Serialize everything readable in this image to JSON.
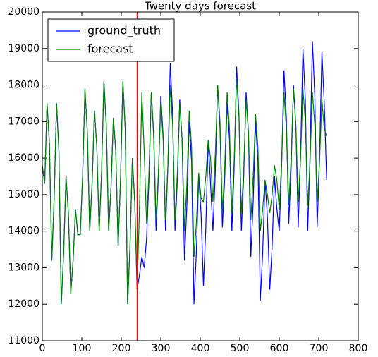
{
  "chart_data": {
    "type": "line",
    "title": "Twenty days forecast",
    "x": [
      0,
      6,
      12,
      18,
      24,
      30,
      36,
      42,
      48,
      54,
      60,
      66,
      72,
      78,
      84,
      90,
      96,
      102,
      108,
      114,
      120,
      126,
      132,
      138,
      144,
      150,
      156,
      162,
      168,
      174,
      180,
      186,
      192,
      198,
      204,
      210,
      216,
      222,
      228,
      234,
      240,
      246,
      252,
      258,
      264,
      270,
      276,
      282,
      288,
      294,
      300,
      306,
      312,
      318,
      324,
      330,
      336,
      342,
      348,
      354,
      360,
      366,
      372,
      378,
      384,
      390,
      396,
      402,
      408,
      414,
      420,
      426,
      432,
      438,
      444,
      450,
      456,
      462,
      468,
      474,
      480,
      486,
      492,
      498,
      504,
      510,
      516,
      522,
      528,
      534,
      540,
      546,
      552,
      558,
      564,
      570,
      576,
      582,
      588,
      594,
      600,
      606,
      612,
      618,
      624,
      630,
      636,
      642,
      648,
      654,
      660,
      666,
      672,
      678,
      684,
      690,
      696,
      702,
      708,
      714,
      720
    ],
    "series": [
      {
        "name": "ground_truth",
        "color": "#0000ff",
        "values": [
          15800,
          15300,
          17500,
          16400,
          13200,
          14900,
          17500,
          16200,
          12000,
          13400,
          15500,
          14500,
          12300,
          13200,
          14600,
          13900,
          13900,
          15500,
          17900,
          16700,
          14000,
          15300,
          17300,
          16300,
          14000,
          15600,
          18100,
          16900,
          14000,
          15200,
          17100,
          16200,
          13600,
          15400,
          18100,
          16800,
          12000,
          13600,
          16000,
          14800,
          12400,
          12800,
          13300,
          13000,
          13800,
          15400,
          17800,
          16600,
          14000,
          15500,
          17700,
          16600,
          14000,
          15800,
          18600,
          17200,
          14000,
          15400,
          17600,
          16500,
          13200,
          14700,
          17000,
          15900,
          12000,
          13400,
          15500,
          14500,
          12500,
          14100,
          16500,
          15300,
          14000,
          15600,
          18000,
          16800,
          14100,
          15500,
          17500,
          16500,
          14000,
          15800,
          18500,
          17200,
          14000,
          15500,
          17800,
          16700,
          13300,
          14800,
          17000,
          15900,
          12100,
          13400,
          15400,
          14400,
          12400,
          13600,
          15500,
          14600,
          14000,
          15800,
          18400,
          17100,
          14200,
          15700,
          18000,
          16900,
          14100,
          16100,
          19000,
          17600,
          14000,
          16100,
          19200,
          17700,
          14100,
          16000,
          18900,
          17500,
          15400
        ]
      },
      {
        "name": "forecast",
        "color": "#008000",
        "values": [
          15800,
          15300,
          17500,
          16400,
          13200,
          14900,
          17500,
          16200,
          12000,
          13400,
          15500,
          14500,
          12300,
          13200,
          14600,
          13900,
          13900,
          15500,
          17900,
          16700,
          14000,
          15300,
          17300,
          16300,
          14000,
          15600,
          18100,
          16900,
          14000,
          15200,
          17100,
          16200,
          13600,
          15400,
          18100,
          16800,
          12000,
          13600,
          16000,
          14800,
          12400,
          14600,
          17800,
          16200,
          14200,
          15600,
          17800,
          16700,
          14300,
          15600,
          17500,
          16500,
          14300,
          15800,
          18000,
          16900,
          14300,
          15600,
          17500,
          16500,
          14000,
          15300,
          17300,
          16300,
          13300,
          14200,
          15600,
          14900,
          14800,
          15500,
          16500,
          16000,
          14800,
          16100,
          18000,
          17000,
          14500,
          15800,
          17800,
          16800,
          14500,
          16000,
          18200,
          17100,
          14500,
          15700,
          17600,
          16700,
          14300,
          15500,
          17200,
          16300,
          14000,
          14600,
          15400,
          15000,
          14500,
          15000,
          15800,
          15400,
          14600,
          15900,
          17800,
          16800,
          14700,
          16000,
          17900,
          16900,
          14800,
          16000,
          17900,
          17000,
          14700,
          15900,
          17800,
          16900,
          14800,
          15900,
          17600,
          16800,
          16600
        ]
      }
    ],
    "vline": {
      "x": 240,
      "color": "#ff0000"
    },
    "xlim": [
      0,
      800
    ],
    "xticks": [
      0,
      100,
      200,
      300,
      400,
      500,
      600,
      700,
      800
    ],
    "ylim": [
      11000,
      20000
    ],
    "yticks": [
      11000,
      12000,
      13000,
      14000,
      15000,
      16000,
      17000,
      18000,
      19000,
      20000
    ],
    "legend": "upper left",
    "grid": false
  }
}
